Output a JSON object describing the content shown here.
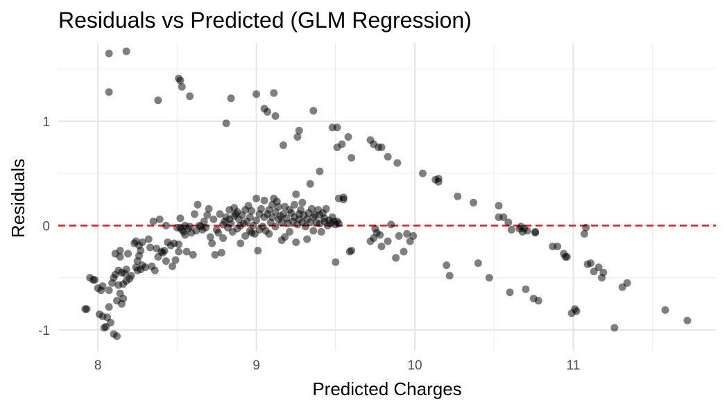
{
  "chart_data": {
    "type": "scatter",
    "title": "Residuals vs Predicted (GLM Regression)",
    "xlabel": "Predicted Charges",
    "ylabel": "Residuals",
    "xlim": [
      7.75,
      11.9
    ],
    "ylim": [
      -1.2,
      1.75
    ],
    "x_ticks": [
      8,
      9,
      10,
      11
    ],
    "x_tick_labels": [
      "8",
      "9",
      "10",
      "11"
    ],
    "y_ticks": [
      -1,
      0,
      1
    ],
    "y_tick_labels": [
      "-1",
      "0",
      "1"
    ],
    "grid": true,
    "reference_line": {
      "y": 0,
      "style": "dashed",
      "color": "#e41a1c"
    },
    "point_color": "#000000",
    "point_opacity": 0.5,
    "legend": "none",
    "points": [
      [
        8.07,
        1.65
      ],
      [
        8.18,
        1.67
      ],
      [
        8.07,
        1.28
      ],
      [
        8.38,
        1.2
      ],
      [
        8.51,
        1.41
      ],
      [
        8.52,
        1.39
      ],
      [
        8.53,
        1.33
      ],
      [
        8.58,
        1.24
      ],
      [
        8.81,
        0.98
      ],
      [
        8.84,
        1.22
      ],
      [
        9.0,
        1.26
      ],
      [
        9.05,
        1.12
      ],
      [
        9.07,
        1.09
      ],
      [
        9.11,
        1.27
      ],
      [
        9.12,
        1.05
      ],
      [
        9.17,
        0.77
      ],
      [
        9.26,
        0.85
      ],
      [
        9.27,
        0.91
      ],
      [
        9.36,
        1.1
      ],
      [
        9.48,
        0.94
      ],
      [
        9.51,
        0.94
      ],
      [
        9.51,
        0.75
      ],
      [
        9.54,
        0.78
      ],
      [
        9.58,
        0.85
      ],
      [
        9.6,
        0.65
      ],
      [
        9.72,
        0.82
      ],
      [
        9.74,
        0.78
      ],
      [
        9.77,
        0.75
      ],
      [
        9.79,
        0.75
      ],
      [
        9.83,
        0.66
      ],
      [
        9.89,
        0.6
      ],
      [
        10.05,
        0.5
      ],
      [
        10.13,
        0.44
      ],
      [
        10.15,
        0.42
      ],
      [
        10.15,
        0.45
      ],
      [
        10.27,
        0.28
      ],
      [
        10.37,
        0.22
      ],
      [
        10.53,
        0.19
      ],
      [
        10.53,
        0.08
      ],
      [
        10.56,
        0.08
      ],
      [
        10.59,
        0.03
      ],
      [
        10.61,
        -0.04
      ],
      [
        10.66,
        -0.03
      ],
      [
        10.67,
        -0.01
      ],
      [
        10.68,
        -0.06
      ],
      [
        10.69,
        -0.03
      ],
      [
        10.71,
        -0.05
      ],
      [
        10.76,
        -0.07
      ],
      [
        10.76,
        -0.06
      ],
      [
        10.87,
        -0.2
      ],
      [
        10.9,
        -0.2
      ],
      [
        10.94,
        -0.27
      ],
      [
        10.95,
        -0.3
      ],
      [
        10.96,
        -0.3
      ],
      [
        11.07,
        -0.08
      ],
      [
        11.08,
        -0.02
      ],
      [
        11.09,
        -0.37
      ],
      [
        11.11,
        -0.36
      ],
      [
        11.13,
        -0.44
      ],
      [
        11.16,
        -0.4
      ],
      [
        11.18,
        -0.5
      ],
      [
        11.19,
        -0.45
      ],
      [
        11.31,
        -0.59
      ],
      [
        11.34,
        -0.55
      ],
      [
        10.99,
        -0.84
      ],
      [
        11.01,
        -0.8
      ],
      [
        11.02,
        -0.82
      ],
      [
        11.26,
        -0.98
      ],
      [
        11.58,
        -0.81
      ],
      [
        11.72,
        -0.91
      ],
      [
        10.6,
        -0.64
      ],
      [
        10.7,
        -0.61
      ],
      [
        10.75,
        -0.7
      ],
      [
        10.78,
        -0.72
      ],
      [
        10.4,
        -0.36
      ],
      [
        10.47,
        -0.5
      ],
      [
        10.2,
        -0.38
      ],
      [
        10.22,
        -0.48
      ],
      [
        9.85,
        0.01
      ],
      [
        9.9,
        -0.1
      ],
      [
        9.95,
        -0.08
      ],
      [
        9.97,
        -0.15
      ],
      [
        9.99,
        -0.1
      ],
      [
        9.88,
        -0.31
      ],
      [
        9.93,
        -0.25
      ],
      [
        9.78,
        -0.09
      ],
      [
        9.79,
        -0.2
      ],
      [
        9.83,
        -0.15
      ],
      [
        9.75,
        -0.03
      ],
      [
        9.76,
        -0.07
      ],
      [
        9.74,
        -0.12
      ],
      [
        9.72,
        -0.15
      ],
      [
        9.6,
        -0.24
      ],
      [
        9.59,
        -0.25
      ],
      [
        9.5,
        -0.35
      ],
      [
        9.52,
        0.26
      ],
      [
        9.55,
        0.27
      ],
      [
        9.55,
        0.25
      ],
      [
        9.4,
        0.52
      ],
      [
        9.34,
        0.4
      ],
      [
        7.92,
        -0.8
      ],
      [
        7.93,
        -0.8
      ],
      [
        7.95,
        -0.5
      ],
      [
        7.97,
        -0.52
      ],
      [
        7.98,
        -0.52
      ],
      [
        8.0,
        -0.6
      ],
      [
        8.01,
        -0.85
      ],
      [
        8.02,
        -0.62
      ],
      [
        8.03,
        -0.58
      ],
      [
        8.03,
        -0.87
      ],
      [
        8.04,
        -0.98
      ],
      [
        8.05,
        -0.97
      ],
      [
        8.06,
        -0.88
      ],
      [
        8.07,
        -0.62
      ],
      [
        8.07,
        -0.78
      ],
      [
        8.08,
        -0.93
      ],
      [
        8.09,
        -0.55
      ],
      [
        8.1,
        -0.5
      ],
      [
        8.1,
        -1.04
      ],
      [
        8.11,
        -0.47
      ],
      [
        8.11,
        -0.27
      ],
      [
        8.12,
        -1.06
      ],
      [
        8.12,
        -0.72
      ],
      [
        8.13,
        -0.57
      ],
      [
        8.13,
        -0.43
      ],
      [
        8.14,
        -0.3
      ],
      [
        8.14,
        -0.65
      ],
      [
        8.14,
        -0.24
      ],
      [
        8.15,
        -0.75
      ],
      [
        8.15,
        -0.45
      ],
      [
        8.16,
        -0.7
      ],
      [
        8.16,
        -0.56
      ],
      [
        8.17,
        -0.46
      ],
      [
        8.18,
        -0.42
      ],
      [
        8.18,
        -0.53
      ],
      [
        8.19,
        -0.27
      ],
      [
        8.2,
        -0.51
      ],
      [
        8.21,
        -0.48
      ],
      [
        8.23,
        -0.17
      ],
      [
        8.24,
        -0.4
      ],
      [
        8.24,
        -0.15
      ],
      [
        8.25,
        -0.34
      ],
      [
        8.25,
        -0.43
      ],
      [
        8.26,
        -0.19
      ],
      [
        8.26,
        -0.29
      ],
      [
        8.27,
        -0.42
      ],
      [
        8.27,
        -0.24
      ],
      [
        8.28,
        -0.38
      ],
      [
        8.28,
        -0.16
      ],
      [
        8.3,
        -0.4
      ],
      [
        8.32,
        -0.13
      ],
      [
        8.33,
        -0.21
      ],
      [
        8.34,
        -0.39
      ],
      [
        8.35,
        0.04
      ],
      [
        8.36,
        -0.43
      ],
      [
        8.37,
        -0.22
      ],
      [
        8.38,
        -0.3
      ],
      [
        8.39,
        0.06
      ],
      [
        8.4,
        -0.25
      ],
      [
        8.41,
        -0.26
      ],
      [
        8.42,
        -0.24
      ],
      [
        8.43,
        0.0
      ],
      [
        8.43,
        -0.34
      ],
      [
        8.44,
        -0.16
      ],
      [
        8.46,
        -0.19
      ],
      [
        8.47,
        -0.39
      ],
      [
        8.48,
        -0.17
      ],
      [
        8.49,
        -0.33
      ],
      [
        8.5,
        -0.02
      ],
      [
        8.51,
        -0.25
      ],
      [
        8.51,
        -0.18
      ],
      [
        8.52,
        0.07
      ],
      [
        8.52,
        -0.02
      ],
      [
        8.53,
        -0.04
      ],
      [
        8.54,
        -0.06
      ],
      [
        8.55,
        0.0
      ],
      [
        8.55,
        -0.09
      ],
      [
        8.56,
        -0.25
      ],
      [
        8.57,
        -0.03
      ],
      [
        8.58,
        -0.01
      ],
      [
        8.59,
        -0.07
      ],
      [
        8.6,
        -0.28
      ],
      [
        8.61,
        0.11
      ],
      [
        8.62,
        -0.05
      ],
      [
        8.63,
        0.2
      ],
      [
        8.64,
        0.0
      ],
      [
        8.65,
        -0.01
      ],
      [
        8.66,
        -0.04
      ],
      [
        8.67,
        0.04
      ],
      [
        8.68,
        -0.02
      ],
      [
        8.69,
        0.1
      ],
      [
        8.7,
        0.16
      ],
      [
        8.71,
        -0.11
      ],
      [
        8.72,
        -0.17
      ],
      [
        8.73,
        0.06
      ],
      [
        8.74,
        -0.28
      ],
      [
        8.75,
        -0.04
      ],
      [
        8.76,
        -0.07
      ],
      [
        8.77,
        0.11
      ],
      [
        8.78,
        -0.26
      ],
      [
        8.79,
        0.01
      ],
      [
        8.79,
        -0.12
      ],
      [
        8.8,
        0.04
      ],
      [
        8.81,
        0.08
      ],
      [
        8.82,
        -0.02
      ],
      [
        8.83,
        0.15
      ],
      [
        8.83,
        0.06
      ],
      [
        8.84,
        0.02
      ],
      [
        8.85,
        -0.06
      ],
      [
        8.86,
        0.17
      ],
      [
        8.86,
        0.09
      ],
      [
        8.87,
        0.11
      ],
      [
        8.88,
        -0.03
      ],
      [
        8.88,
        0.13
      ],
      [
        8.89,
        0.06
      ],
      [
        8.9,
        0.0
      ],
      [
        8.9,
        -0.17
      ],
      [
        8.91,
        0.1
      ],
      [
        8.92,
        0.02
      ],
      [
        8.93,
        0.15
      ],
      [
        8.93,
        -0.1
      ],
      [
        8.94,
        0.04
      ],
      [
        8.95,
        0.19
      ],
      [
        8.96,
        -0.05
      ],
      [
        8.96,
        0.08
      ],
      [
        8.97,
        0.14
      ],
      [
        8.97,
        -0.07
      ],
      [
        8.98,
        0.0
      ],
      [
        8.99,
        -0.08
      ],
      [
        9.0,
        0.05
      ],
      [
        9.0,
        0.26
      ],
      [
        9.01,
        -0.24
      ],
      [
        9.02,
        0.11
      ],
      [
        9.02,
        -0.04
      ],
      [
        9.03,
        0.16
      ],
      [
        9.04,
        -0.01
      ],
      [
        9.05,
        0.24
      ],
      [
        9.05,
        0.08
      ],
      [
        9.06,
        -0.05
      ],
      [
        9.07,
        0.11
      ],
      [
        9.08,
        0.15
      ],
      [
        9.08,
        -0.08
      ],
      [
        9.09,
        0.03
      ],
      [
        9.1,
        0.2
      ],
      [
        9.1,
        0.08
      ],
      [
        9.11,
        0.26
      ],
      [
        9.12,
        -0.01
      ],
      [
        9.12,
        0.13
      ],
      [
        9.13,
        0.23
      ],
      [
        9.14,
        0.06
      ],
      [
        9.14,
        0.18
      ],
      [
        9.15,
        0.09
      ],
      [
        9.16,
        -0.14
      ],
      [
        9.16,
        0.03
      ],
      [
        9.17,
        0.11
      ],
      [
        9.18,
        0.18
      ],
      [
        9.18,
        -0.11
      ],
      [
        9.19,
        0.07
      ],
      [
        9.2,
        0.02
      ],
      [
        9.21,
        0.15
      ],
      [
        9.21,
        -0.06
      ],
      [
        9.22,
        0.12
      ],
      [
        9.23,
        0.04
      ],
      [
        9.24,
        0.2
      ],
      [
        9.24,
        0.08
      ],
      [
        9.25,
        0.3
      ],
      [
        9.25,
        -0.16
      ],
      [
        9.26,
        0.01
      ],
      [
        9.27,
        0.11
      ],
      [
        9.27,
        0.06
      ],
      [
        9.28,
        0.15
      ],
      [
        9.29,
        0.03
      ],
      [
        9.29,
        0.22
      ],
      [
        9.3,
        0.1
      ],
      [
        9.31,
        -0.01
      ],
      [
        9.32,
        0.06
      ],
      [
        9.32,
        -0.13
      ],
      [
        9.33,
        0.12
      ],
      [
        9.34,
        0.03
      ],
      [
        9.35,
        0.16
      ],
      [
        9.36,
        0.08
      ],
      [
        9.36,
        -0.05
      ],
      [
        9.37,
        0.1
      ],
      [
        9.38,
        0.03
      ],
      [
        9.39,
        0.15
      ],
      [
        9.4,
        0.02
      ],
      [
        9.4,
        0.1
      ],
      [
        9.41,
        -0.06
      ],
      [
        9.42,
        0.12
      ],
      [
        9.43,
        0.04
      ],
      [
        9.43,
        0.07
      ],
      [
        9.44,
        0.16
      ],
      [
        9.45,
        0.0
      ],
      [
        9.46,
        0.05
      ],
      [
        9.47,
        0.02
      ],
      [
        9.48,
        0.08
      ],
      [
        9.49,
        0.04
      ],
      [
        9.5,
        0.01
      ],
      [
        9.51,
        0.04
      ],
      [
        9.52,
        0.02
      ]
    ]
  }
}
